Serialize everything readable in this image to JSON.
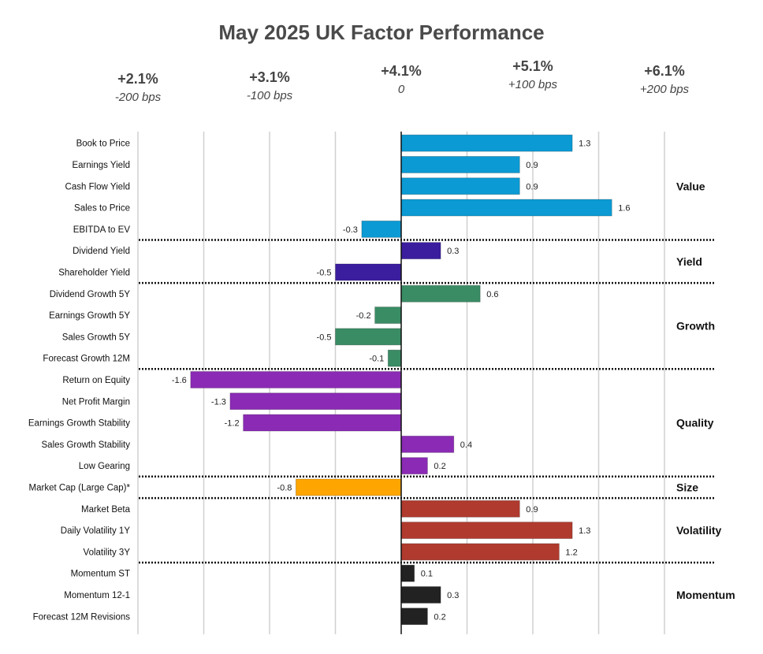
{
  "chart_data": {
    "type": "bar",
    "orientation": "horizontal",
    "title": "May 2025 UK Factor Performance",
    "xlim": [
      -2,
      2
    ],
    "grid": true,
    "top_axis": [
      {
        "value": -2,
        "return": "+2.1%",
        "bps": "-200 bps"
      },
      {
        "value": -1,
        "return": "+3.1%",
        "bps": "-100 bps"
      },
      {
        "value": 0,
        "return": "+4.1%",
        "bps": "0"
      },
      {
        "value": 1,
        "return": "+5.1%",
        "bps": "+100 bps"
      },
      {
        "value": 2,
        "return": "+6.1%",
        "bps": "+200 bps"
      }
    ],
    "groups": [
      {
        "name": "Value",
        "color": "#0b9ad3",
        "factors": [
          {
            "label": "Book to Price",
            "value": 1.3
          },
          {
            "label": "Earnings Yield",
            "value": 0.9
          },
          {
            "label": "Cash Flow Yield",
            "value": 0.9
          },
          {
            "label": "Sales to Price",
            "value": 1.6
          },
          {
            "label": "EBITDA to EV",
            "value": -0.3
          }
        ]
      },
      {
        "name": "Yield",
        "color": "#3a1e9e",
        "factors": [
          {
            "label": "Dividend Yield",
            "value": 0.3
          },
          {
            "label": "Shareholder Yield",
            "value": -0.5
          }
        ]
      },
      {
        "name": "Growth",
        "color": "#3a8c65",
        "factors": [
          {
            "label": "Dividend Growth 5Y",
            "value": 0.6
          },
          {
            "label": "Earnings Growth 5Y",
            "value": -0.2
          },
          {
            "label": "Sales Growth 5Y",
            "value": -0.5
          },
          {
            "label": "Forecast Growth 12M",
            "value": -0.1
          }
        ]
      },
      {
        "name": "Quality",
        "color": "#8b2ab5",
        "factors": [
          {
            "label": "Return on Equity",
            "value": -1.6
          },
          {
            "label": "Net Profit Margin",
            "value": -1.3
          },
          {
            "label": "Earnings Growth Stability",
            "value": -1.2
          },
          {
            "label": "Sales Growth Stability",
            "value": 0.4
          },
          {
            "label": "Low Gearing",
            "value": 0.2
          }
        ]
      },
      {
        "name": "Size",
        "color": "#ffa500",
        "factors": [
          {
            "label": "Market Cap (Large Cap)*",
            "value": -0.8
          }
        ]
      },
      {
        "name": "Volatility",
        "color": "#b03a2e",
        "factors": [
          {
            "label": "Market Beta",
            "value": 0.9
          },
          {
            "label": "Daily Volatility 1Y",
            "value": 1.3
          },
          {
            "label": "Volatility 3Y",
            "value": 1.2
          }
        ]
      },
      {
        "name": "Momentum",
        "color": "#222222",
        "factors": [
          {
            "label": "Momentum ST",
            "value": 0.1
          },
          {
            "label": "Momentum 12-1",
            "value": 0.3
          },
          {
            "label": "Forecast 12M Revisions",
            "value": 0.2
          }
        ]
      }
    ]
  }
}
